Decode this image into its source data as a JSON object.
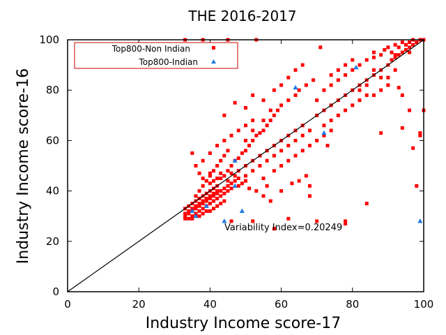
{
  "chart_data": {
    "type": "scatter",
    "title": "THE 2016-2017",
    "xlabel": "Industry Income score-17",
    "ylabel": "Industry Income score-16",
    "xlim": [
      0,
      100
    ],
    "ylim": [
      0,
      100
    ],
    "xticks": [
      "0",
      "20",
      "40",
      "60",
      "80",
      "100"
    ],
    "yticks": [
      "0",
      "20",
      "40",
      "60",
      "80",
      "100"
    ],
    "grid": false,
    "legend_position": "top-left",
    "annotation": "Variability Index=0.20249",
    "diagonal": [
      [
        0,
        0
      ],
      [
        100,
        100
      ]
    ],
    "series": [
      {
        "name": "Top800-Non Indian",
        "color": "#ff0000",
        "marker": "square",
        "points": [
          [
            33,
            30
          ],
          [
            34,
            31
          ],
          [
            33,
            29
          ],
          [
            35,
            32
          ],
          [
            34,
            29
          ],
          [
            36,
            33
          ],
          [
            35,
            30
          ],
          [
            37,
            34
          ],
          [
            36,
            31
          ],
          [
            38,
            35
          ],
          [
            37,
            32
          ],
          [
            39,
            36
          ],
          [
            38,
            33
          ],
          [
            40,
            37
          ],
          [
            39,
            34
          ],
          [
            41,
            38
          ],
          [
            40,
            35
          ],
          [
            42,
            39
          ],
          [
            41,
            36
          ],
          [
            43,
            40
          ],
          [
            42,
            37
          ],
          [
            44,
            41
          ],
          [
            43,
            38
          ],
          [
            45,
            42
          ],
          [
            44,
            39
          ],
          [
            46,
            43
          ],
          [
            45,
            40
          ],
          [
            47,
            44
          ],
          [
            46,
            41
          ],
          [
            48,
            45
          ],
          [
            33,
            33
          ],
          [
            34,
            34
          ],
          [
            35,
            35
          ],
          [
            36,
            36
          ],
          [
            37,
            37
          ],
          [
            38,
            38
          ],
          [
            39,
            39
          ],
          [
            40,
            40
          ],
          [
            41,
            41
          ],
          [
            42,
            42
          ],
          [
            33,
            31
          ],
          [
            34,
            32
          ],
          [
            35,
            33
          ],
          [
            36,
            34
          ],
          [
            37,
            35
          ],
          [
            38,
            36
          ],
          [
            39,
            37
          ],
          [
            40,
            38
          ],
          [
            41,
            39
          ],
          [
            42,
            40
          ],
          [
            35,
            29
          ],
          [
            36,
            30
          ],
          [
            37,
            30
          ],
          [
            38,
            31
          ],
          [
            39,
            32
          ],
          [
            40,
            32
          ],
          [
            41,
            33
          ],
          [
            42,
            34
          ],
          [
            43,
            35
          ],
          [
            44,
            36
          ],
          [
            36,
            38
          ],
          [
            37,
            40
          ],
          [
            38,
            42
          ],
          [
            39,
            44
          ],
          [
            40,
            46
          ],
          [
            41,
            48
          ],
          [
            42,
            50
          ],
          [
            43,
            52
          ],
          [
            44,
            54
          ],
          [
            45,
            56
          ],
          [
            37,
            47
          ],
          [
            38,
            45
          ],
          [
            40,
            43
          ],
          [
            42,
            45
          ],
          [
            43,
            47
          ],
          [
            45,
            48
          ],
          [
            46,
            50
          ],
          [
            47,
            52
          ],
          [
            48,
            53
          ],
          [
            49,
            55
          ],
          [
            50,
            56
          ],
          [
            51,
            58
          ],
          [
            52,
            60
          ],
          [
            53,
            62
          ],
          [
            54,
            63
          ],
          [
            55,
            64
          ],
          [
            56,
            66
          ],
          [
            57,
            68
          ],
          [
            58,
            70
          ],
          [
            59,
            72
          ],
          [
            48,
            48
          ],
          [
            50,
            50
          ],
          [
            52,
            52
          ],
          [
            54,
            54
          ],
          [
            56,
            56
          ],
          [
            58,
            58
          ],
          [
            60,
            60
          ],
          [
            62,
            62
          ],
          [
            64,
            64
          ],
          [
            66,
            66
          ],
          [
            50,
            46
          ],
          [
            52,
            48
          ],
          [
            54,
            50
          ],
          [
            56,
            52
          ],
          [
            58,
            54
          ],
          [
            60,
            56
          ],
          [
            62,
            58
          ],
          [
            64,
            60
          ],
          [
            66,
            62
          ],
          [
            68,
            64
          ],
          [
            50,
            60
          ],
          [
            52,
            64
          ],
          [
            55,
            68
          ],
          [
            57,
            72
          ],
          [
            60,
            74
          ],
          [
            62,
            76
          ],
          [
            64,
            78
          ],
          [
            65,
            80
          ],
          [
            67,
            82
          ],
          [
            69,
            84
          ],
          [
            70,
            70
          ],
          [
            72,
            72
          ],
          [
            74,
            74
          ],
          [
            76,
            76
          ],
          [
            78,
            78
          ],
          [
            80,
            80
          ],
          [
            82,
            82
          ],
          [
            84,
            84
          ],
          [
            86,
            86
          ],
          [
            88,
            88
          ],
          [
            70,
            76
          ],
          [
            72,
            80
          ],
          [
            74,
            82
          ],
          [
            76,
            84
          ],
          [
            78,
            86
          ],
          [
            80,
            88
          ],
          [
            82,
            90
          ],
          [
            84,
            92
          ],
          [
            86,
            93
          ],
          [
            88,
            94
          ],
          [
            90,
            90
          ],
          [
            91,
            92
          ],
          [
            92,
            93
          ],
          [
            93,
            94
          ],
          [
            94,
            95
          ],
          [
            95,
            96
          ],
          [
            96,
            97
          ],
          [
            97,
            98
          ],
          [
            98,
            99
          ],
          [
            99,
            100
          ],
          [
            89,
            96
          ],
          [
            90,
            97
          ],
          [
            91,
            95
          ],
          [
            92,
            98
          ],
          [
            93,
            97
          ],
          [
            94,
            99
          ],
          [
            95,
            98
          ],
          [
            96,
            99
          ],
          [
            97,
            100
          ],
          [
            100,
            100
          ],
          [
            72,
            66
          ],
          [
            74,
            68
          ],
          [
            76,
            70
          ],
          [
            78,
            72
          ],
          [
            80,
            74
          ],
          [
            82,
            76
          ],
          [
            84,
            78
          ],
          [
            86,
            78
          ],
          [
            88,
            80
          ],
          [
            90,
            82
          ],
          [
            55,
            45
          ],
          [
            58,
            48
          ],
          [
            60,
            50
          ],
          [
            62,
            52
          ],
          [
            64,
            54
          ],
          [
            66,
            56
          ],
          [
            68,
            58
          ],
          [
            70,
            60
          ],
          [
            72,
            62
          ],
          [
            74,
            64
          ],
          [
            35,
            55
          ],
          [
            36,
            50
          ],
          [
            38,
            52
          ],
          [
            40,
            55
          ],
          [
            42,
            58
          ],
          [
            44,
            60
          ],
          [
            46,
            62
          ],
          [
            48,
            64
          ],
          [
            50,
            66
          ],
          [
            52,
            68
          ],
          [
            44,
            70
          ],
          [
            47,
            75
          ],
          [
            50,
            73
          ],
          [
            52,
            78
          ],
          [
            55,
            76
          ],
          [
            58,
            80
          ],
          [
            60,
            82
          ],
          [
            62,
            85
          ],
          [
            64,
            88
          ],
          [
            66,
            90
          ],
          [
            33,
            100
          ],
          [
            38,
            100
          ],
          [
            45,
            100
          ],
          [
            53,
            100
          ],
          [
            71,
            97
          ],
          [
            86,
            95
          ],
          [
            92,
            94
          ],
          [
            96,
            95
          ],
          [
            46,
            28
          ],
          [
            52,
            28
          ],
          [
            58,
            25
          ],
          [
            62,
            29
          ],
          [
            70,
            28
          ],
          [
            78,
            28
          ],
          [
            78,
            27
          ],
          [
            84,
            35
          ],
          [
            68,
            38
          ],
          [
            73,
            58
          ],
          [
            88,
            63
          ],
          [
            94,
            65
          ],
          [
            96,
            72
          ],
          [
            99,
            62
          ],
          [
            99,
            63
          ],
          [
            100,
            72
          ],
          [
            98,
            42
          ],
          [
            97,
            57
          ],
          [
            93,
            81
          ],
          [
            94,
            78
          ],
          [
            92,
            88
          ],
          [
            90,
            85
          ],
          [
            88,
            85
          ],
          [
            86,
            88
          ],
          [
            84,
            82
          ],
          [
            82,
            80
          ],
          [
            80,
            92
          ],
          [
            78,
            90
          ],
          [
            76,
            88
          ],
          [
            74,
            86
          ],
          [
            40,
            47
          ],
          [
            41,
            44
          ],
          [
            43,
            45
          ],
          [
            44,
            46
          ],
          [
            45,
            44
          ],
          [
            46,
            47
          ],
          [
            47,
            46
          ],
          [
            48,
            42
          ],
          [
            49,
            43
          ],
          [
            50,
            44
          ],
          [
            55,
            38
          ],
          [
            57,
            36
          ],
          [
            60,
            40
          ],
          [
            63,
            43
          ],
          [
            65,
            44
          ],
          [
            67,
            46
          ],
          [
            68,
            42
          ],
          [
            56,
            42
          ],
          [
            53,
            40
          ],
          [
            51,
            41
          ]
        ]
      },
      {
        "name": "Top800-Indian",
        "color": "#1e78e6",
        "marker": "triangle",
        "points": [
          [
            35,
            32
          ],
          [
            36,
            30
          ],
          [
            39,
            34
          ],
          [
            44,
            28
          ],
          [
            47,
            42
          ],
          [
            47,
            52
          ],
          [
            49,
            32
          ],
          [
            64,
            81
          ],
          [
            72,
            63
          ],
          [
            81,
            89
          ],
          [
            99,
            28
          ]
        ]
      }
    ]
  }
}
